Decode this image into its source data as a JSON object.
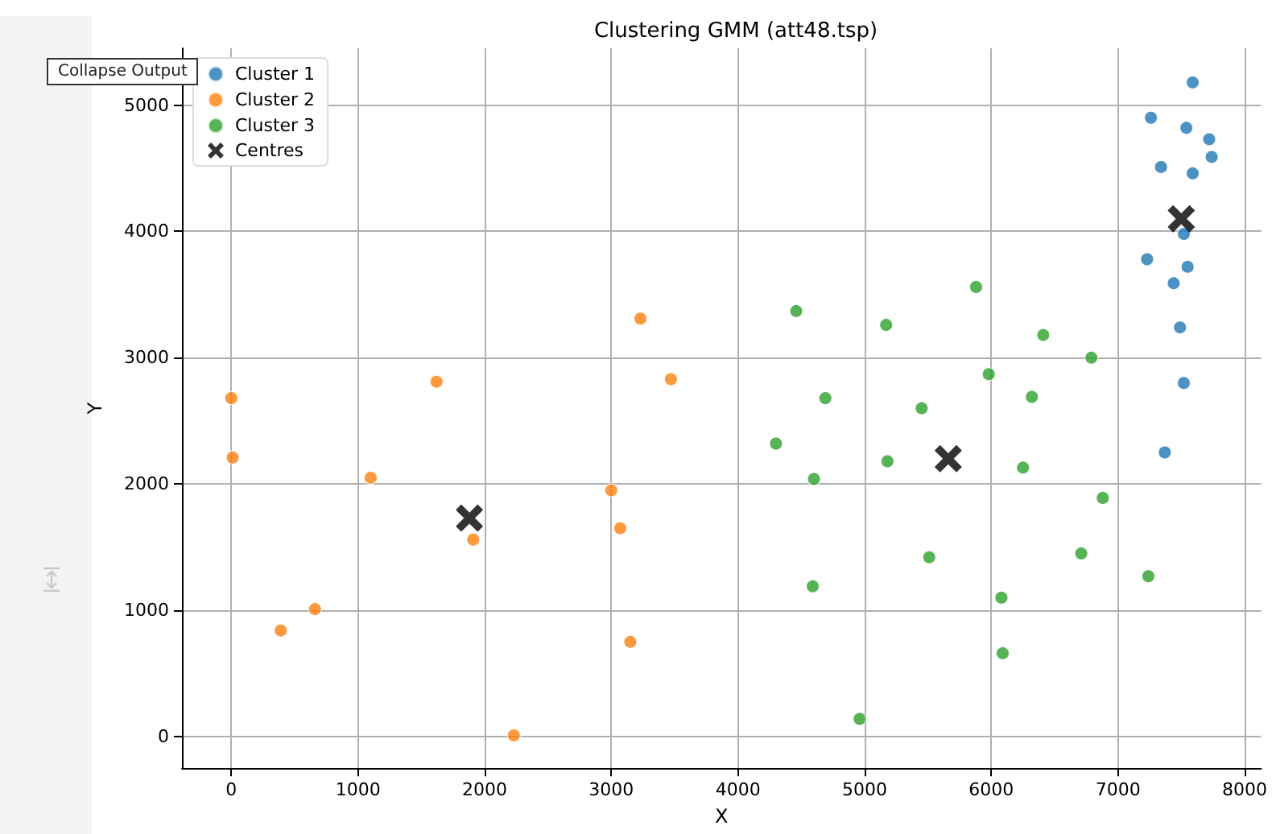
{
  "chart_data": {
    "type": "scatter",
    "title": "Clustering GMM (att48.tsp)",
    "xlabel": "X",
    "ylabel": "Y",
    "annotations": [
      "Collapse Output"
    ],
    "xlim": [
      -390,
      8130
    ],
    "ylim": [
      -250,
      5450
    ],
    "xticks": [
      0,
      1000,
      2000,
      3000,
      4000,
      5000,
      6000,
      7000,
      8000
    ],
    "yticks": [
      0,
      1000,
      2000,
      3000,
      4000,
      5000
    ],
    "grid": true,
    "legend": "top left",
    "marker": "circle",
    "series": [
      {
        "name": "Cluster 1",
        "color": "#1f77b4",
        "x": [
          7590,
          7260,
          7540,
          7720,
          7740,
          7340,
          7590,
          7520,
          7230,
          7550,
          7440,
          7490,
          7520,
          7370
        ],
        "values": [
          5180,
          4900,
          4820,
          4730,
          4590,
          4510,
          4460,
          3980,
          3780,
          3720,
          3590,
          3240,
          2800,
          2250
        ]
      },
      {
        "name": "Cluster 2",
        "color": "#ff7f0e",
        "x": [
          0,
          10,
          1100,
          1620,
          660,
          390,
          1910,
          2230,
          3000,
          3070,
          3230,
          3470,
          3150
        ],
        "values": [
          2680,
          2210,
          2050,
          2810,
          1010,
          840,
          1560,
          10,
          1950,
          1650,
          3310,
          2830,
          750
        ]
      },
      {
        "name": "Cluster 3",
        "color": "#2ca02c",
        "x": [
          4460,
          5170,
          5880,
          6410,
          6790,
          5980,
          6320,
          4690,
          5450,
          4300,
          5180,
          4600,
          6250,
          6880,
          5510,
          6710,
          7240,
          4590,
          6080,
          6090,
          4960
        ],
        "values": [
          3370,
          3260,
          3560,
          3180,
          3000,
          2870,
          2690,
          2680,
          2600,
          2320,
          2180,
          2040,
          2130,
          1890,
          1420,
          1450,
          1270,
          1190,
          1100,
          660,
          140
        ]
      },
      {
        "name": "Centres",
        "color": "#000000",
        "marker": "cross",
        "x": [
          7500,
          1880,
          5660
        ],
        "values": [
          4100,
          1730,
          2200
        ]
      }
    ]
  }
}
